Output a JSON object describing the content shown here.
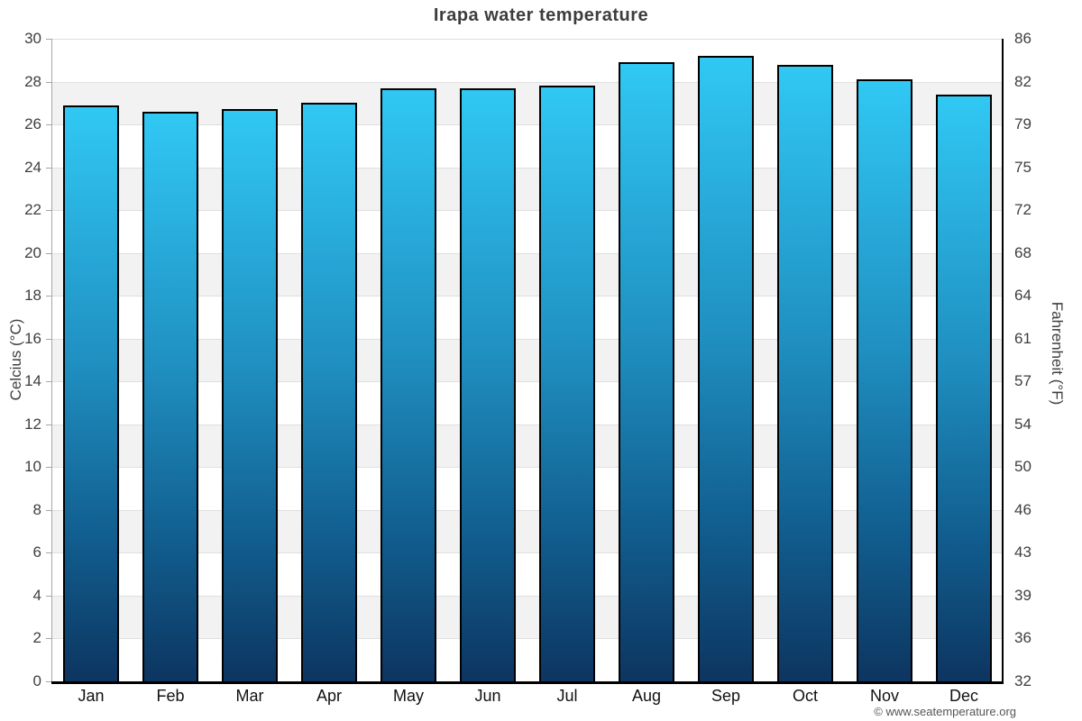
{
  "page": {
    "title": "Irapa water temperature",
    "credit": "© www.seatemperature.org"
  },
  "chart_data": {
    "type": "bar",
    "title": "Irapa water temperature",
    "categories": [
      "Jan",
      "Feb",
      "Mar",
      "Apr",
      "May",
      "Jun",
      "Jul",
      "Aug",
      "Sep",
      "Oct",
      "Nov",
      "Dec"
    ],
    "values": [
      26.9,
      26.6,
      26.7,
      27.0,
      27.7,
      27.7,
      27.8,
      28.9,
      29.2,
      28.8,
      28.1,
      27.4
    ],
    "ylabel_left": "Celcius (°C)",
    "ylabel_right": "Fahrenheit (°F)",
    "ylim": [
      0,
      30
    ],
    "grid": true,
    "legend_position": "none",
    "yticks": [
      {
        "celsius": "30",
        "fahrenheit": "86"
      },
      {
        "celsius": "28",
        "fahrenheit": "82"
      },
      {
        "celsius": "26",
        "fahrenheit": "79"
      },
      {
        "celsius": "24",
        "fahrenheit": "75"
      },
      {
        "celsius": "22",
        "fahrenheit": "72"
      },
      {
        "celsius": "20",
        "fahrenheit": "68"
      },
      {
        "celsius": "18",
        "fahrenheit": "64"
      },
      {
        "celsius": "16",
        "fahrenheit": "61"
      },
      {
        "celsius": "14",
        "fahrenheit": "57"
      },
      {
        "celsius": "12",
        "fahrenheit": "54"
      },
      {
        "celsius": "10",
        "fahrenheit": "50"
      },
      {
        "celsius": "8",
        "fahrenheit": "46"
      },
      {
        "celsius": "6",
        "fahrenheit": "43"
      },
      {
        "celsius": "4",
        "fahrenheit": "39"
      },
      {
        "celsius": "2",
        "fahrenheit": "36"
      },
      {
        "celsius": "0",
        "fahrenheit": "32"
      }
    ],
    "colors": {
      "bar_gradient_top": "#31c8f4",
      "bar_gradient_mid": "#1f8fc0",
      "bar_gradient_low": "#115e8f",
      "bar_gradient_bottom": "#0d3560",
      "bar_border": "#000000",
      "band_fill": "#f2f2f2",
      "gridline": "#dfdfdf",
      "axis_left_line": "#a6a6a6",
      "axis_dark_line": "#000000",
      "title_text": "#3d3d3d",
      "tick_text": "#3e3e3e",
      "month_text": "#111111",
      "footer_text": "#555555"
    }
  }
}
